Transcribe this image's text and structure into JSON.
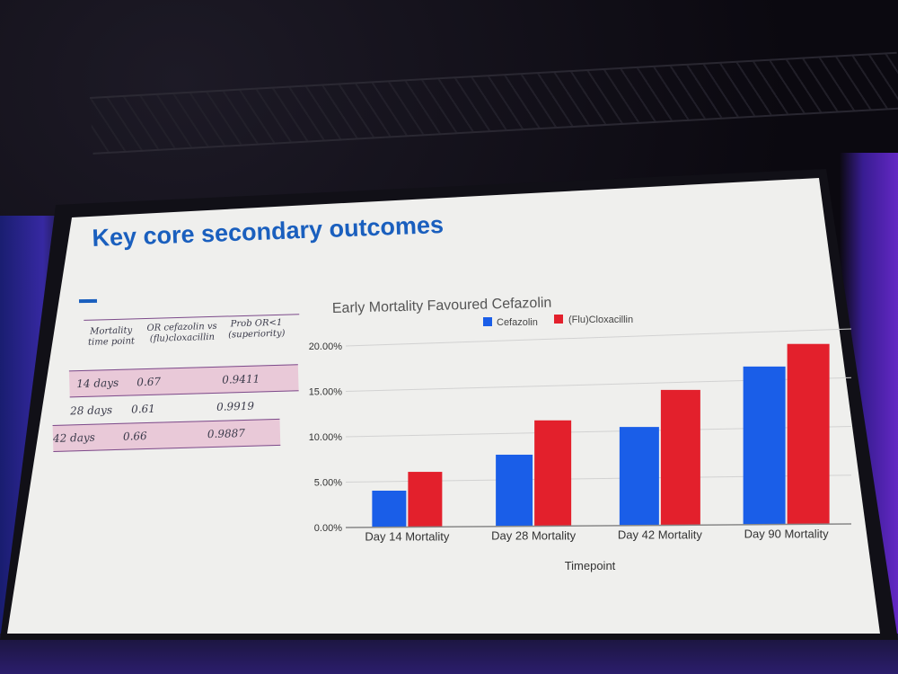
{
  "slide": {
    "title": "Key core secondary outcomes"
  },
  "table": {
    "headers": [
      "Mortality\ntime point",
      "OR cefazolin vs\n(flu)cloxacillin",
      "Prob OR<1\n(superiority)"
    ],
    "rows": [
      {
        "timepoint": "14 days",
        "or": "0.67",
        "prob": "0.9411",
        "shaded": true
      },
      {
        "timepoint": "28 days",
        "or": "0.61",
        "prob": "0.9919",
        "shaded": false
      },
      {
        "timepoint": "42 days",
        "or": "0.66",
        "prob": "0.9887",
        "shaded": true
      }
    ]
  },
  "colors": {
    "cefazolin": "#1a5ee8",
    "cloxacillin": "#e3202c",
    "title": "#1a5fbe",
    "shade": "#e9c9d8"
  },
  "chart_data": {
    "type": "bar",
    "title": "Early Mortality Favoured Cefazolin",
    "xlabel": "Timepoint",
    "ylabel": "",
    "categories": [
      "Day 14 Mortality",
      "Day 28 Mortality",
      "Day 42 Mortality",
      "Day 90 Mortality"
    ],
    "series": [
      {
        "name": "Cefazolin",
        "values": [
          4.0,
          7.7,
          10.4,
          16.4
        ]
      },
      {
        "name": "(Flu)Cloxacillin",
        "values": [
          6.0,
          11.3,
          14.2,
          18.6
        ]
      }
    ],
    "ylim": [
      0,
      20
    ],
    "yticks": [
      "0.00%",
      "5.00%",
      "10.00%",
      "15.00%",
      "20.00%"
    ],
    "grid": true,
    "legend": "top-center"
  }
}
